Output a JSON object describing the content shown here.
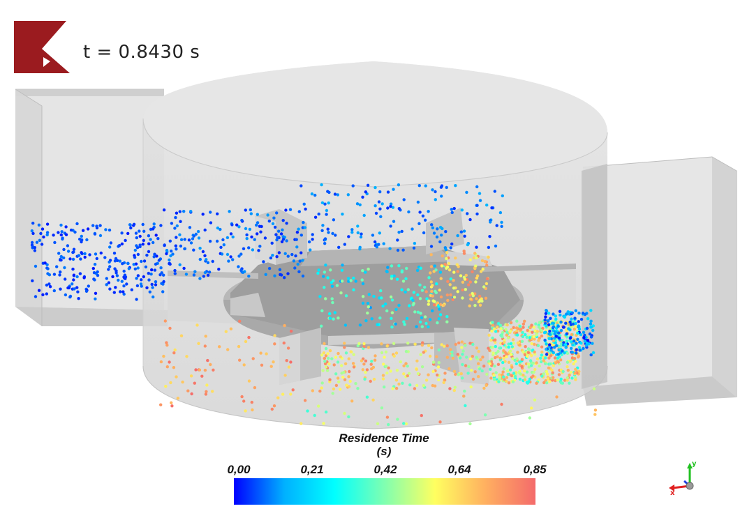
{
  "time_label": "t = 0.8430 s",
  "legend": {
    "title": "Residence Time",
    "unit": "(s)",
    "ticks": [
      "0,00",
      "0,21",
      "0,42",
      "0,64",
      "0,85"
    ],
    "range": [
      0,
      0.85
    ],
    "colormap": [
      "#0000ff",
      "#00b0ff",
      "#00ffff",
      "#80ffb0",
      "#ffff60",
      "#ffb060",
      "#f46b6b"
    ]
  },
  "logo": {
    "color": "#9b1b1f"
  },
  "axes": {
    "x": "x",
    "y": "y",
    "x_color": "#e02020",
    "y_color": "#20c020",
    "z_color": "#2040e0"
  }
}
